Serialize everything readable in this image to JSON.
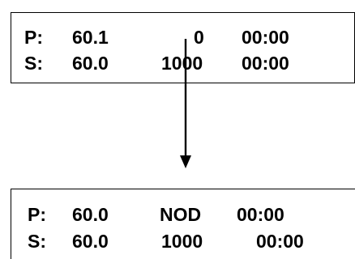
{
  "top_panel": {
    "row_p": {
      "label": "P:",
      "value": "60.1",
      "count": "0",
      "time": "00:00"
    },
    "row_s": {
      "label": "S:",
      "value": "60.0",
      "count": "1000",
      "time": "00:00"
    }
  },
  "bottom_panel": {
    "row_p": {
      "label": "P:",
      "value": "60.0",
      "count": "NOD",
      "time": "00:00"
    },
    "row_s": {
      "label": "S:",
      "value": "60.0",
      "count": "1000",
      "time": "00:00"
    }
  }
}
